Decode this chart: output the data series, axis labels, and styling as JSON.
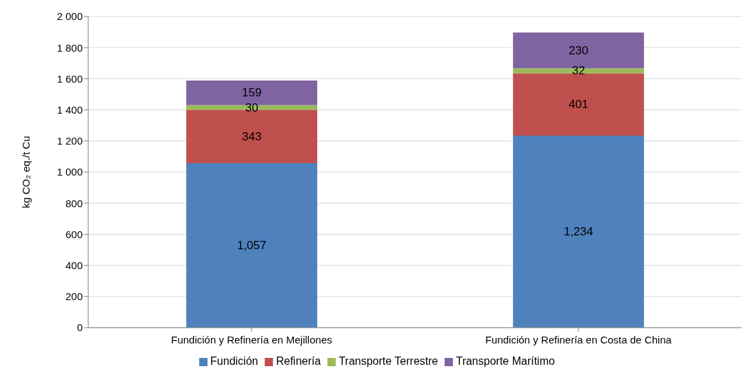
{
  "chart_data": {
    "type": "bar",
    "stacked": true,
    "ylabel": "kg CO₂ eq./t Cu",
    "categories": [
      "Fundición y Refinería en Mejillones",
      "Fundición y Refinería en Costa de China"
    ],
    "series": [
      {
        "name": "Fundición",
        "color": "#4f81bd",
        "values": [
          1057,
          1234
        ],
        "value_labels": [
          "1,057",
          "1,234"
        ]
      },
      {
        "name": "Refinería",
        "color": "#c0504d",
        "values": [
          343,
          401
        ],
        "value_labels": [
          "343",
          "401"
        ]
      },
      {
        "name": "Transporte Terrestre",
        "color": "#9bbb59",
        "values": [
          30,
          32
        ],
        "value_labels": [
          "30",
          "32"
        ]
      },
      {
        "name": "Transporte Marítimo",
        "color": "#8064a2",
        "values": [
          159,
          230
        ],
        "value_labels": [
          "159",
          "230"
        ]
      }
    ],
    "ylim": [
      0,
      2000
    ],
    "yticks": [
      0,
      200,
      400,
      600,
      800,
      {
        "value": 1000,
        "label": "1 000"
      },
      {
        "value": 1200,
        "label": "1 200"
      },
      {
        "value": 1400,
        "label": "1 400"
      },
      {
        "value": 1600,
        "label": "1 600"
      },
      {
        "value": 1800,
        "label": "1 800"
      },
      {
        "value": 2000,
        "label": "2 000"
      }
    ],
    "grid": "y",
    "legend": "bottom"
  }
}
